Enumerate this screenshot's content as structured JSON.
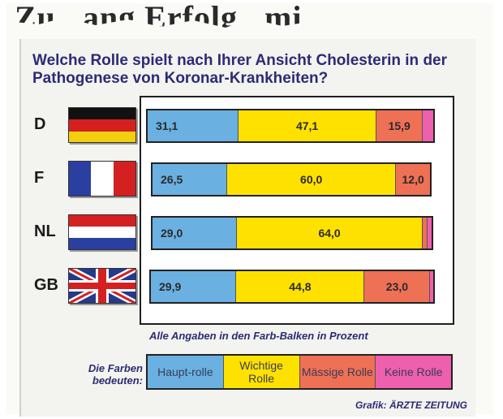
{
  "colors": {
    "haupt": "#6ab0e0",
    "wichtig": "#ffe100",
    "massig": "#ee7055",
    "keine": "#ee5fae"
  },
  "header_fragment": "Zu...ang Erfolg...mi...",
  "chart_data": {
    "type": "bar",
    "orientation": "horizontal",
    "stacked": true,
    "title": "Welche Rolle spielt nach Ihrer Ansicht Cholesterin in der Pathogenese von Koronar-Krankheiten?",
    "categories": [
      "D",
      "F",
      "NL",
      "GB"
    ],
    "series": [
      {
        "name": "Haupt-rolle",
        "color_key": "haupt",
        "values": [
          31.1,
          26.5,
          29.0,
          29.9
        ],
        "labels": [
          "31,1",
          "26,5",
          "29,0",
          "29,9"
        ]
      },
      {
        "name": "Wichtige Rolle",
        "color_key": "wichtig",
        "values": [
          47.1,
          60.0,
          64.0,
          44.8
        ],
        "labels": [
          "47,1",
          "60,0",
          "64,0",
          "44,8"
        ]
      },
      {
        "name": "Mässige Rolle",
        "color_key": "massig",
        "values": [
          15.9,
          12.0,
          1.5,
          23.0
        ],
        "labels": [
          "15,9",
          "12,0",
          "",
          "23,0"
        ]
      },
      {
        "name": "Keine Rolle",
        "color_key": "keine",
        "values": [
          3.5,
          0,
          1.5,
          1.0
        ],
        "labels": [
          "",
          "",
          "",
          ""
        ]
      }
    ],
    "note": "Alle Angaben in den Farb-Balken in Prozent",
    "legend_title": "Die Farben bedeuten:",
    "legend": [
      {
        "label": "Haupt-rolle",
        "color_key": "haupt"
      },
      {
        "label": "Wichtige Rolle",
        "color_key": "wichtig"
      },
      {
        "label": "Mässige Rolle",
        "color_key": "massig"
      },
      {
        "label": "Keine Rolle",
        "color_key": "keine"
      }
    ],
    "credit_prefix": "Grafik:",
    "credit_brand": "ÄRZTE ZEITUNG"
  },
  "flags": [
    {
      "country": "D",
      "icon": "germany-flag-icon"
    },
    {
      "country": "F",
      "icon": "france-flag-icon"
    },
    {
      "country": "NL",
      "icon": "netherlands-flag-icon"
    },
    {
      "country": "GB",
      "icon": "uk-flag-icon"
    }
  ]
}
